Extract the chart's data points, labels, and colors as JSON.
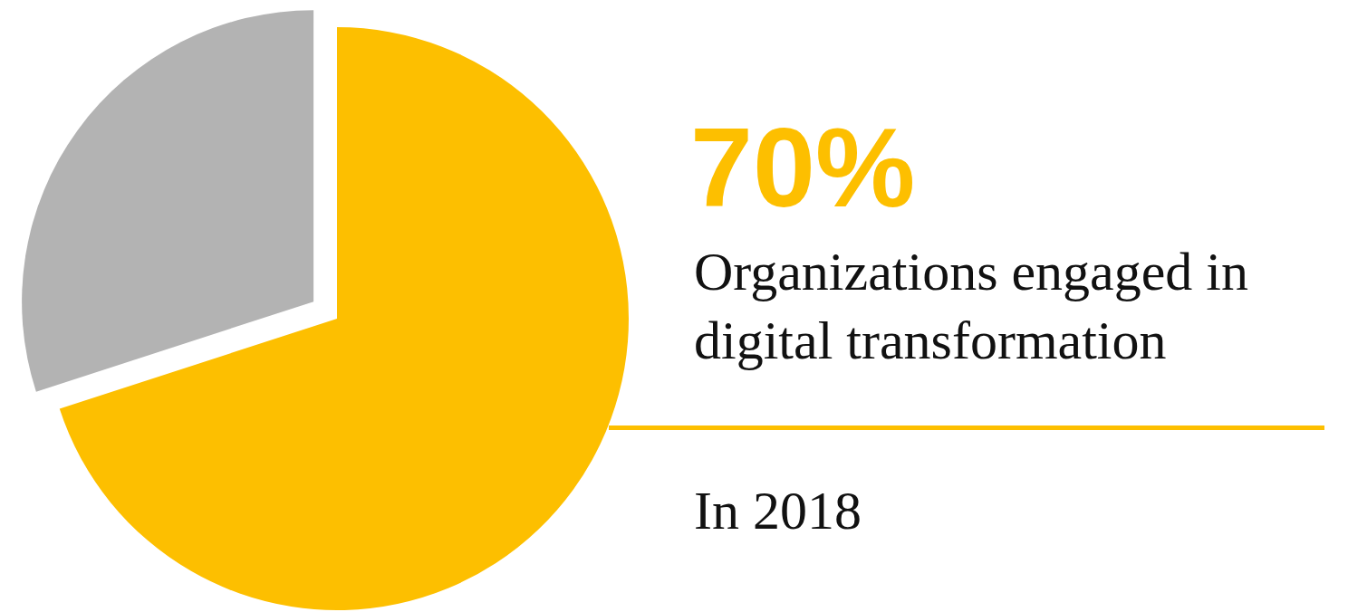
{
  "chart_data": {
    "type": "pie",
    "title": "Organizations engaged in digital transformation",
    "subtitle": "In 2018",
    "categories": [
      null,
      null
    ],
    "values": [
      70,
      30
    ],
    "colors": [
      "#fdbf00",
      "#b3b3b3"
    ],
    "value_labels": [
      "70%",
      null
    ]
  }
}
